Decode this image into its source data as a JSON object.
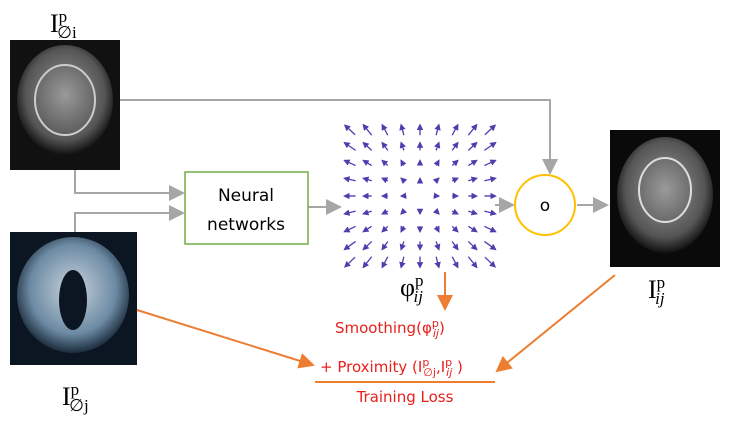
{
  "images": [
    {
      "base": "I",
      "sup": "p",
      "sub": "∅i"
    },
    {
      "base": "I",
      "sup": "p",
      "sub": "∅j"
    },
    {
      "base": "I",
      "sup": "p",
      "sub": "ij"
    }
  ],
  "network": {
    "lines": [
      "Neural",
      "networks"
    ]
  },
  "compose": {
    "symbol": "o"
  },
  "field": {
    "base": "φ",
    "sup": "p",
    "sub": "ij"
  },
  "loss": {
    "smoothing": {
      "prefix": "Smoothing(",
      "base": "φ",
      "sup": "p",
      "sub": "ij",
      "suffix": ")"
    },
    "proximity": {
      "prefix": "+ Proximity (",
      "base1": "I",
      "sup1": "p",
      "sub1": "∅j",
      "sep": ",",
      "base2": "I",
      "sup2": "p",
      "sub2": "ij",
      "suffix": " )"
    },
    "total": "Training Loss"
  }
}
